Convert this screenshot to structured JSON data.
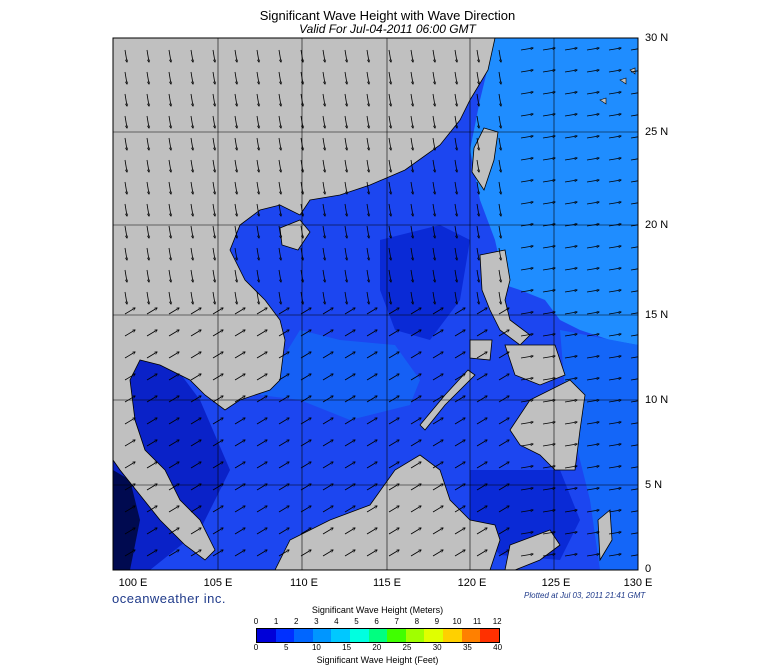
{
  "title": "Significant Wave Height with Wave Direction",
  "subtitle": "Valid For Jul-04-2011 06:00 GMT",
  "latitude_labels": [
    "30 N",
    "25 N",
    "20 N",
    "15 N",
    "10 N",
    "5 N",
    "0"
  ],
  "longitude_labels": [
    "100 E",
    "105 E",
    "110 E",
    "115 E",
    "120 E",
    "125 E",
    "130 E"
  ],
  "brand": "oceanweather inc.",
  "plotted": "Plotted at Jul 03, 2011 21:41 GMT",
  "legend": {
    "title_meters": "Significant Wave Height (Meters)",
    "title_feet": "Significant Wave Height (Feet)",
    "meter_ticks": [
      "0",
      "1",
      "2",
      "3",
      "4",
      "5",
      "6",
      "7",
      "8",
      "9",
      "10",
      "11",
      "12"
    ],
    "feet_ticks": [
      "0",
      "5",
      "10",
      "15",
      "20",
      "25",
      "30",
      "35",
      "40"
    ],
    "colors": [
      "#0000d8",
      "#0030ff",
      "#0066ff",
      "#0096ff",
      "#00c8ff",
      "#00ffe0",
      "#00ff80",
      "#40ff00",
      "#a0ff00",
      "#e0ff00",
      "#ffd000",
      "#ff8000",
      "#ff3000"
    ]
  },
  "colors": {
    "land": "#c0c0c0",
    "sea_main": "#1c46f0",
    "sea_dark": "#0a2ad6",
    "sea_light": "#1f8dff",
    "sea_mid": "#1464f8"
  }
}
